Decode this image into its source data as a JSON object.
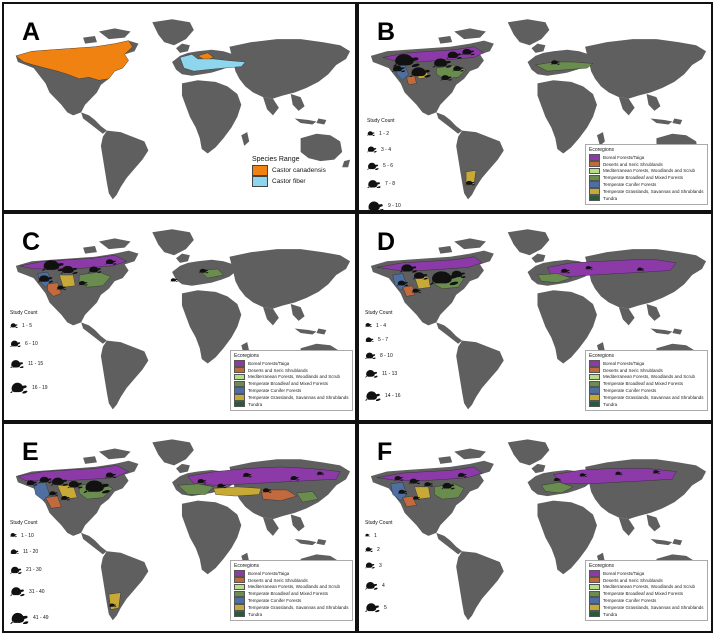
{
  "colors": {
    "land": "#5f5f5f",
    "castor_canadensis": "#f08212",
    "castor_fiber": "#8dd6ee",
    "boreal": "#8b3aa7",
    "deserts": "#c06a3e",
    "mediterranean": "#b8dd8a",
    "temperate_broadleaf": "#6a8c4e",
    "temperate_conifer": "#4e6fa0",
    "temperate_grasslands": "#c7a937",
    "tundra": "#2a5a3a"
  },
  "panels": [
    {
      "label": "A"
    },
    {
      "label": "B"
    },
    {
      "label": "C"
    },
    {
      "label": "D"
    },
    {
      "label": "E"
    },
    {
      "label": "F"
    }
  ],
  "panelA_legend": {
    "title": "Species Range",
    "items": [
      {
        "label": "Castor canadensis",
        "color_key": "castor_canadensis"
      },
      {
        "label": "Castor fiber",
        "color_key": "castor_fiber"
      }
    ]
  },
  "ecoregions_legend": {
    "title": "Ecoregions",
    "items": [
      {
        "label": "Boreal Forests/Taiga",
        "color_key": "boreal"
      },
      {
        "label": "Deserts and Xeric Shrublands",
        "color_key": "deserts"
      },
      {
        "label": "Mediterranean Forests, Woodlands and Scrub",
        "color_key": "mediterranean"
      },
      {
        "label": "Temperate Broadleaf and Mixed Forests",
        "color_key": "temperate_broadleaf"
      },
      {
        "label": "Temperate Conifer Forests",
        "color_key": "temperate_conifer"
      },
      {
        "label": "Temperate Grasslands, Savannas and Shrublands",
        "color_key": "temperate_grasslands"
      },
      {
        "label": "Tundra",
        "color_key": "tundra"
      }
    ]
  },
  "study_count_title": "Study Count",
  "study_counts": {
    "B": [
      "1 - 2",
      "3 - 4",
      "5 - 6",
      "7 - 8",
      "9 - 10"
    ],
    "C": [
      "1 - 5",
      "6 - 10",
      "11 - 15",
      "16 - 19"
    ],
    "D": [
      "1 - 4",
      "5 - 7",
      "8 - 10",
      "11 - 13",
      "14 - 16"
    ],
    "E": [
      "1 - 10",
      "11 - 20",
      "21 - 30",
      "31 - 40",
      "41 - 49"
    ],
    "F": [
      "1",
      "2",
      "3",
      "4",
      "5"
    ]
  }
}
